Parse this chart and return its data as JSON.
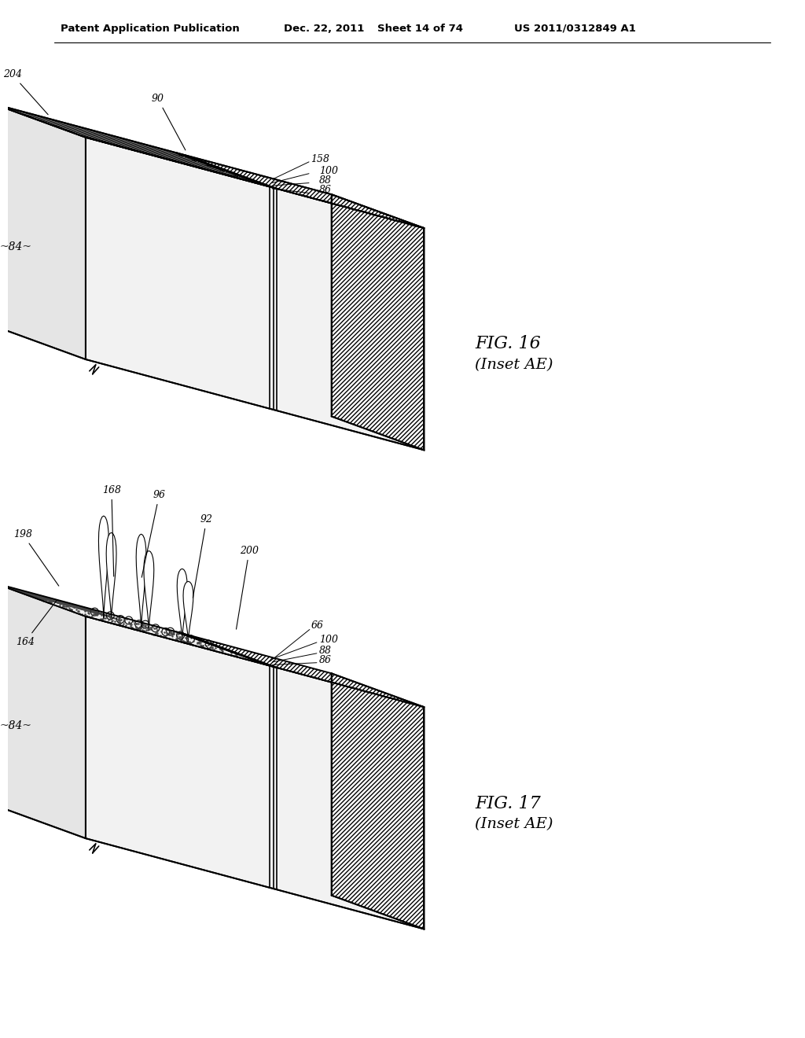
{
  "bg_color": "#ffffff",
  "line_color": "#000000",
  "header_text": "Patent Application Publication",
  "header_date": "Dec. 22, 2011",
  "header_sheet": "Sheet 14 of 74",
  "header_patent": "US 2011/0312849 A1",
  "fig16_caption": "FIG. 16",
  "fig16_sub": "(Inset AE)",
  "fig17_caption": "FIG. 17",
  "fig17_sub": "(Inset AE)",
  "hatch_color": "#555555",
  "dot_color": "#333333",
  "dark_square_color": "#222222"
}
